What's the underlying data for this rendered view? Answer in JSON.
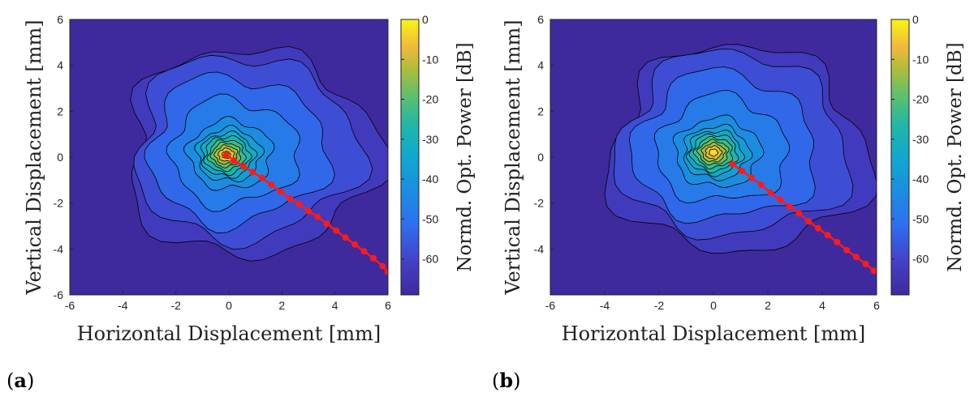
{
  "figure": {
    "panel_a_label": "a",
    "panel_b_label": "b"
  },
  "colors": {
    "track": "#ff1a1a",
    "contour_line": "#000000"
  },
  "chart_data": [
    {
      "type": "heatmap",
      "panel": "a",
      "xlabel": "Horizontal Displacement [mm]",
      "ylabel": "Vertical Displacement [mm]",
      "colorbar_label": "Normd. Opt. Power [dB]",
      "xlim": [
        -6,
        6
      ],
      "ylim": [
        -6,
        6
      ],
      "xticks": [
        -6,
        -4,
        -2,
        0,
        2,
        4,
        6
      ],
      "yticks": [
        -6,
        -4,
        -2,
        0,
        2,
        4,
        6
      ],
      "clim": [
        -69,
        0
      ],
      "cticks": [
        0,
        -10,
        -20,
        -30,
        -40,
        -50,
        -60
      ],
      "peak": {
        "x": -0.1,
        "y": 0.1
      },
      "track_points": [
        [
          -0.1,
          0.1
        ],
        [
          0.2,
          -0.15
        ],
        [
          0.55,
          -0.4
        ],
        [
          0.9,
          -0.65
        ],
        [
          1.25,
          -0.9
        ],
        [
          1.6,
          -1.2
        ],
        [
          1.95,
          -1.5
        ],
        [
          2.3,
          -1.8
        ],
        [
          2.65,
          -2.05
        ],
        [
          3.0,
          -2.35
        ],
        [
          3.35,
          -2.6
        ],
        [
          3.7,
          -2.9
        ],
        [
          4.05,
          -3.2
        ],
        [
          4.4,
          -3.5
        ],
        [
          4.75,
          -3.8
        ],
        [
          5.1,
          -4.1
        ],
        [
          5.45,
          -4.4
        ],
        [
          5.8,
          -4.75
        ],
        [
          6.0,
          -5.0
        ]
      ]
    },
    {
      "type": "heatmap",
      "panel": "b",
      "xlabel": "Horizontal Displacement [mm]",
      "ylabel": "Vertical Displacement [mm]",
      "colorbar_label": "Normd. Opt. Power [dB]",
      "xlim": [
        -6,
        6
      ],
      "ylim": [
        -6,
        6
      ],
      "xticks": [
        -6,
        -4,
        -2,
        0,
        2,
        4,
        6
      ],
      "yticks": [
        -4,
        -2,
        0,
        2,
        4,
        6
      ],
      "clim": [
        -69,
        0
      ],
      "cticks": [
        0,
        -10,
        -20,
        -30,
        -40,
        -50,
        -60
      ],
      "peak": {
        "x": 0.0,
        "y": 0.2
      },
      "track_points": [
        [
          0.7,
          -0.3
        ],
        [
          1.05,
          -0.6
        ],
        [
          1.4,
          -0.9
        ],
        [
          1.75,
          -1.2
        ],
        [
          2.1,
          -1.55
        ],
        [
          2.45,
          -1.85
        ],
        [
          2.8,
          -2.15
        ],
        [
          3.15,
          -2.45
        ],
        [
          3.5,
          -2.8
        ],
        [
          3.85,
          -3.1
        ],
        [
          4.2,
          -3.4
        ],
        [
          4.55,
          -3.7
        ],
        [
          4.9,
          -4.05
        ],
        [
          5.25,
          -4.35
        ],
        [
          5.6,
          -4.65
        ],
        [
          5.9,
          -4.95
        ]
      ]
    }
  ]
}
